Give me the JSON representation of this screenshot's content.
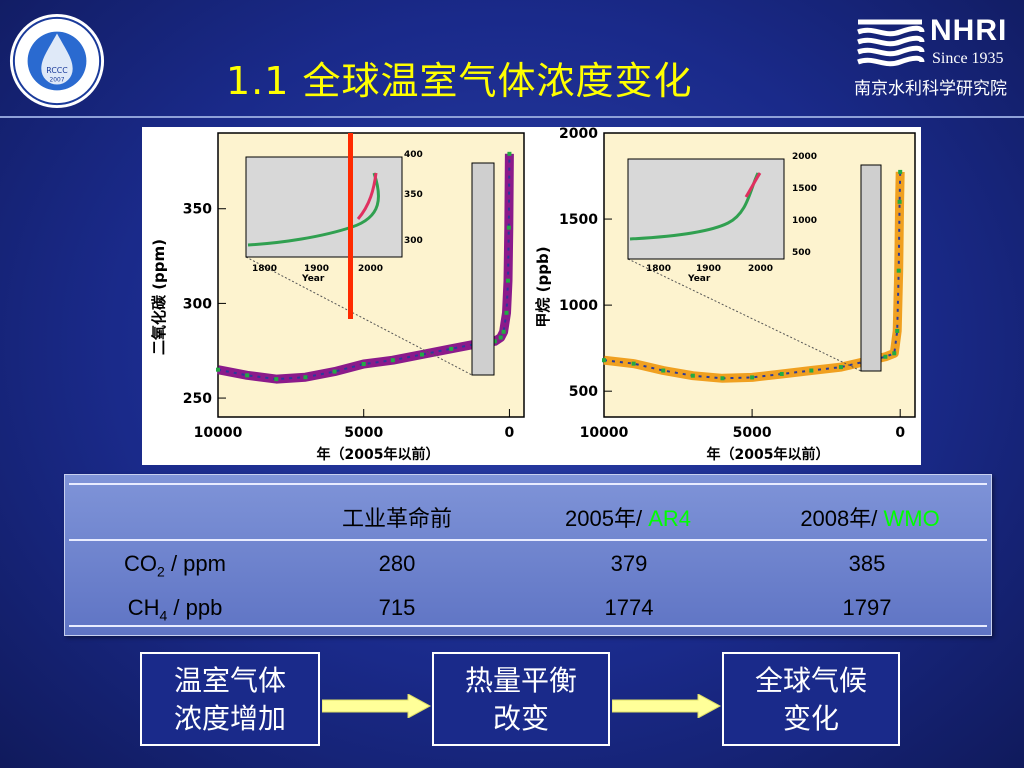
{
  "title": "1.1 全球温室气体浓度变化",
  "logo_left": {
    "center_text": "RCCC",
    "year": "2007"
  },
  "logo_right": {
    "name": "NHRI",
    "since": "Since 1935",
    "cn_name": "南京水利科学研究院"
  },
  "chart_data": [
    {
      "type": "scatter",
      "ylabel": "二氧化碳 (ppm)",
      "xlabel": "年（2005年以前）",
      "x_ticks": [
        "10000",
        "5000",
        "0"
      ],
      "y_ticks": [
        "250",
        "300",
        "350"
      ],
      "ylim": [
        240,
        390
      ],
      "xlim": [
        10000,
        -500
      ],
      "x_reversed": true,
      "series": [
        {
          "values": [
            [
              10000,
              265
            ],
            [
              9000,
              262
            ],
            [
              8000,
              260
            ],
            [
              7000,
              261
            ],
            [
              6000,
              264
            ],
            [
              5000,
              268
            ],
            [
              4000,
              270
            ],
            [
              3000,
              273
            ],
            [
              2000,
              276
            ],
            [
              1000,
              279
            ],
            [
              500,
              280
            ],
            [
              300,
              282
            ],
            [
              200,
              285
            ],
            [
              100,
              295
            ],
            [
              50,
              312
            ],
            [
              20,
              340
            ],
            [
              0,
              379
            ]
          ]
        }
      ],
      "inset": {
        "x_ticks": [
          "1800",
          "1900",
          "2000"
        ],
        "y_ticks": [
          "300",
          "350",
          "400"
        ],
        "xlabel": "Year"
      }
    },
    {
      "type": "scatter",
      "ylabel": "甲烷 (ppb)",
      "xlabel": "年（2005年以前）",
      "x_ticks": [
        "10000",
        "5000",
        "0"
      ],
      "y_ticks": [
        "500",
        "1000",
        "1500",
        "2000"
      ],
      "ylim": [
        350,
        2000
      ],
      "xlim": [
        10000,
        -500
      ],
      "x_reversed": true,
      "series": [
        {
          "values": [
            [
              10000,
              680
            ],
            [
              9000,
              660
            ],
            [
              8000,
              620
            ],
            [
              7000,
              590
            ],
            [
              6000,
              575
            ],
            [
              5000,
              580
            ],
            [
              4000,
              600
            ],
            [
              3000,
              620
            ],
            [
              2000,
              640
            ],
            [
              1000,
              680
            ],
            [
              500,
              700
            ],
            [
              200,
              720
            ],
            [
              100,
              850
            ],
            [
              50,
              1200
            ],
            [
              20,
              1600
            ],
            [
              0,
              1774
            ]
          ]
        }
      ],
      "inset": {
        "x_ticks": [
          "1800",
          "1900",
          "2000"
        ],
        "y_ticks": [
          "500",
          "1000",
          "1500",
          "2000"
        ],
        "xlabel": "Year"
      }
    }
  ],
  "table": {
    "headers": [
      "工业革命前",
      "2005年/ ",
      "2008年/ "
    ],
    "header_green": [
      "AR4",
      "WMO"
    ],
    "rows": [
      {
        "gas": "CO",
        "sub": "2",
        "unit": " / ppm",
        "values": [
          "280",
          "379",
          "385"
        ]
      },
      {
        "gas": "CH",
        "sub": "4",
        "unit": " / ppb",
        "values": [
          "715",
          "1774",
          "1797"
        ]
      }
    ]
  },
  "flow": [
    {
      "line1": "温室气体",
      "line2": "浓度增加"
    },
    {
      "line1": "热量平衡",
      "line2": "改变"
    },
    {
      "line1": "全球气候",
      "line2": "变化"
    }
  ],
  "colors": {
    "title": "#ffff00",
    "arrow": "#ffff99",
    "co2": "#8b1a8b",
    "ch4": "#f0a020",
    "green": "#00ff00"
  }
}
